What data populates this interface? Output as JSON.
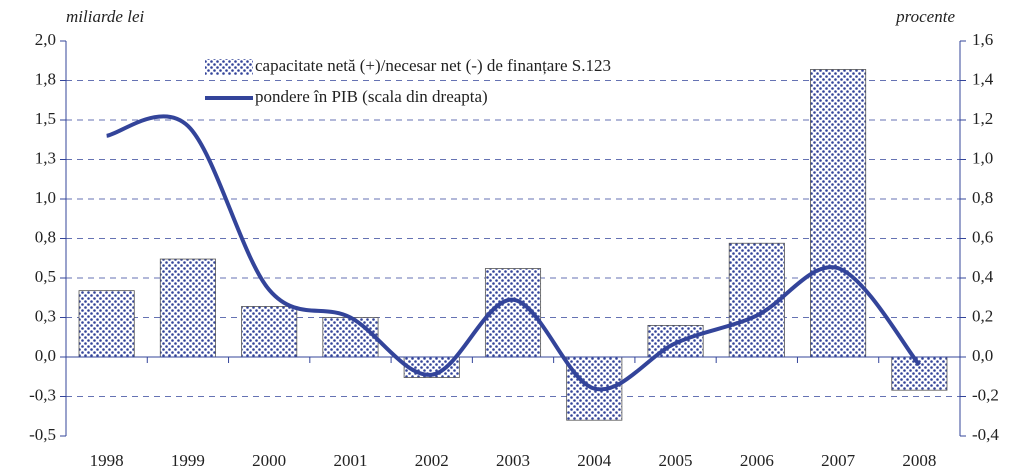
{
  "chart_data": {
    "type": "bar",
    "y_label": "miliarde lei",
    "y2_label": "procente",
    "categories": [
      "1998",
      "1999",
      "2000",
      "2001",
      "2002",
      "2003",
      "2004",
      "2005",
      "2006",
      "2007",
      "2008"
    ],
    "series": [
      {
        "name": "capacitate netă (+)/necesar net (-) de finanțare S.123",
        "type": "bar",
        "color": "#33449a",
        "values": [
          0.42,
          0.62,
          0.32,
          0.25,
          -0.13,
          0.56,
          -0.4,
          0.2,
          0.72,
          1.82,
          -0.21
        ]
      },
      {
        "name": "pondere în PIB (scala din dreapta)",
        "type": "line",
        "axis": "y2",
        "color": "#33449a",
        "values": [
          1.12,
          1.17,
          0.34,
          0.2,
          -0.09,
          0.29,
          -0.16,
          0.07,
          0.21,
          0.45,
          -0.04
        ]
      }
    ],
    "ylim": [
      -0.5,
      2.0
    ],
    "yticks": [
      {
        "value": 2.0,
        "label": "2,0"
      },
      {
        "value": 1.75,
        "label": "1,8"
      },
      {
        "value": 1.5,
        "label": "1,5"
      },
      {
        "value": 1.25,
        "label": "1,3"
      },
      {
        "value": 1.0,
        "label": "1,0"
      },
      {
        "value": 0.75,
        "label": "0,8"
      },
      {
        "value": 0.5,
        "label": "0,5"
      },
      {
        "value": 0.25,
        "label": "0,3"
      },
      {
        "value": 0,
        "label": "0,0"
      },
      {
        "value": -0.25,
        "label": "-0,3"
      },
      {
        "value": -0.5,
        "label": "-0,5"
      }
    ],
    "y2lim": [
      -0.4,
      1.6
    ],
    "y2ticks": [
      {
        "value": 1.6,
        "label": "1,6"
      },
      {
        "value": 1.4,
        "label": "1,4"
      },
      {
        "value": 1.2,
        "label": "1,2"
      },
      {
        "value": 1.0,
        "label": "1,0"
      },
      {
        "value": 0.8,
        "label": "0,8"
      },
      {
        "value": 0.6,
        "label": "0,6"
      },
      {
        "value": 0.4,
        "label": "0,4"
      },
      {
        "value": 0.2,
        "label": "0,2"
      },
      {
        "value": 0,
        "label": "0,0"
      },
      {
        "value": -0.2,
        "label": "-0,2"
      },
      {
        "value": -0.4,
        "label": "-0,4"
      }
    ],
    "grid": true
  }
}
